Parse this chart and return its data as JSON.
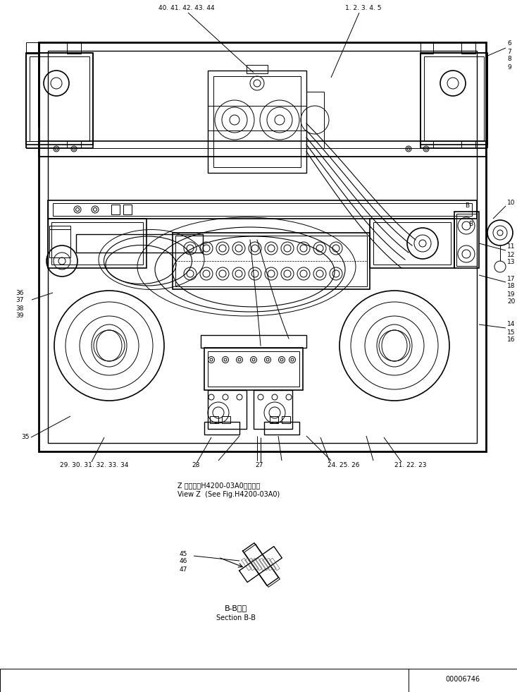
{
  "bg_color": "#ffffff",
  "line_color": "#000000",
  "fig_width": 7.34,
  "fig_height": 9.81,
  "dpi": 100,
  "part_number": "00006746",
  "labels_top_left": "40. 41. 42. 43. 44",
  "labels_top_right": "1. 2. 3. 4. 5",
  "label_6": "6",
  "label_7": "7",
  "label_8": "8",
  "label_9": "9",
  "label_10": "10",
  "label_11": "11",
  "label_12": "12",
  "label_13": "13",
  "label_14": "14",
  "label_15": "15",
  "label_16": "16",
  "label_17": "17",
  "label_18": "18",
  "label_19": "19",
  "label_20": "20",
  "label_35": "35",
  "label_36": "36",
  "label_37": "37",
  "label_38": "38",
  "label_39": "39",
  "labels_bottom_left": "29. 30. 31. 32. 33. 34",
  "labels_bottom_mid1": "28",
  "labels_bottom_mid2": "27",
  "labels_bottom_mid3": "24. 25. 26",
  "labels_bottom_right": "21. 22. 23",
  "view_label_jp": "Z 　視（第H4200-03A0図参照）",
  "view_label_en": "View Z  (See Fig.H4200-03A0)",
  "section_label_jp": "B-B断面",
  "section_label_en": "Section B-B",
  "bb_labels": [
    "45",
    "46",
    "47"
  ],
  "B_label": "B"
}
